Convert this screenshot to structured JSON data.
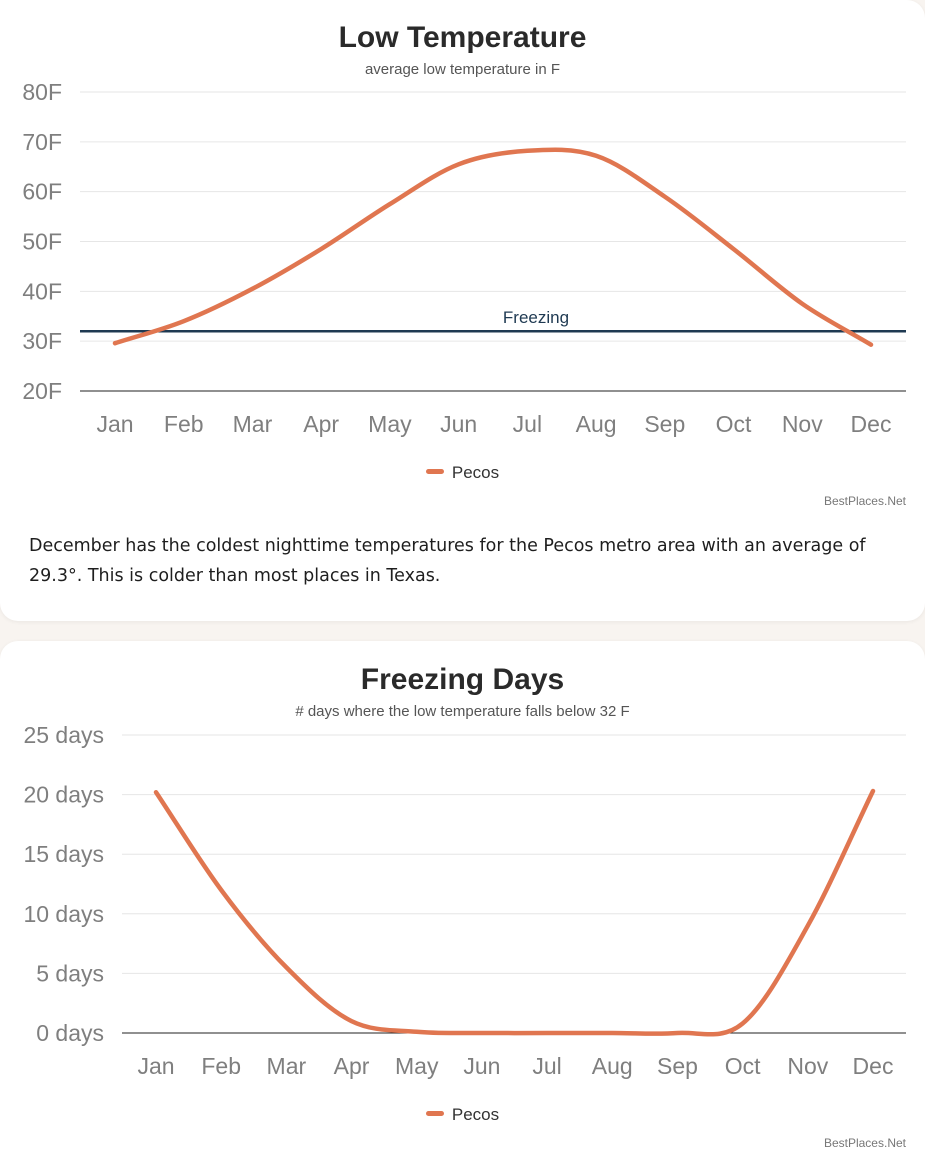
{
  "colors": {
    "series": "#e07650",
    "freezing_line": "#1f3a52",
    "grid": "#e6e6e6",
    "axis": "#222222"
  },
  "low_temperature": {
    "title": "Low Temperature",
    "subtitle": "average low temperature in F",
    "legend": "Pecos",
    "credit": "BestPlaces.Net",
    "freezing_label": "Freezing",
    "description": "December has the coldest nighttime temperatures for the Pecos metro area with an average of 29.3°. This is colder than most places in Texas."
  },
  "freezing_days": {
    "title": "Freezing Days",
    "subtitle": "# days where the low temperature falls below 32 F",
    "legend": "Pecos",
    "credit": "BestPlaces.Net"
  },
  "chart_data": [
    {
      "type": "line",
      "title": "Low Temperature",
      "subtitle": "average low temperature in F",
      "categories": [
        "Jan",
        "Feb",
        "Mar",
        "Apr",
        "May",
        "Jun",
        "Jul",
        "Aug",
        "Sep",
        "Oct",
        "Nov",
        "Dec"
      ],
      "series": [
        {
          "name": "Pecos",
          "values": [
            29.6,
            34.0,
            40.5,
            48.5,
            57.5,
            65.5,
            68.2,
            67.2,
            59.0,
            48.5,
            37.5,
            29.3
          ]
        }
      ],
      "reference_lines": [
        {
          "label": "Freezing",
          "value": 32
        }
      ],
      "ylim": [
        20,
        80
      ],
      "yticks": [
        20,
        30,
        40,
        50,
        60,
        70,
        80
      ],
      "ytick_labels": [
        "20F",
        "30F",
        "40F",
        "50F",
        "60F",
        "70F",
        "80F"
      ],
      "grid": true,
      "legend_position": "bottom-center"
    },
    {
      "type": "line",
      "title": "Freezing Days",
      "subtitle": "# days where the low temperature falls below 32 F",
      "categories": [
        "Jan",
        "Feb",
        "Mar",
        "Apr",
        "May",
        "Jun",
        "Jul",
        "Aug",
        "Sep",
        "Oct",
        "Nov",
        "Dec"
      ],
      "series": [
        {
          "name": "Pecos",
          "values": [
            20.2,
            12.0,
            5.5,
            1.0,
            0.1,
            0.0,
            0.0,
            0.0,
            0.0,
            0.8,
            9.0,
            20.3
          ]
        }
      ],
      "ylim": [
        0,
        25
      ],
      "yticks": [
        0,
        5,
        10,
        15,
        20,
        25
      ],
      "ytick_labels": [
        "0 days",
        "5 days",
        "10 days",
        "15 days",
        "20 days",
        "25 days"
      ],
      "grid": true,
      "legend_position": "bottom-center"
    }
  ]
}
